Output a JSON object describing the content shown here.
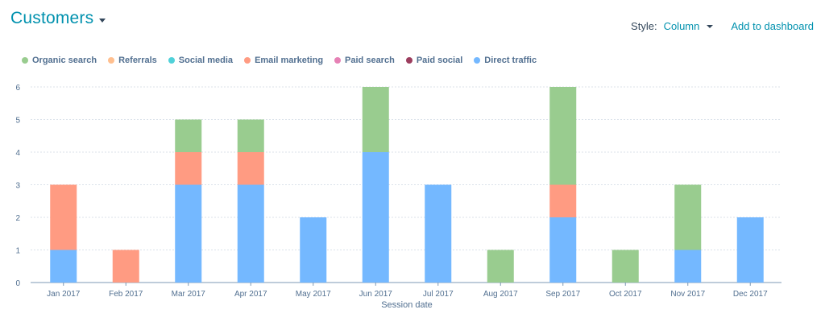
{
  "header": {
    "title": "Customers",
    "style_label": "Style:",
    "style_value": "Column",
    "add_link": "Add to dashboard"
  },
  "legend": [
    {
      "label": "Organic search",
      "color": "#99cc8f"
    },
    {
      "label": "Referrals",
      "color": "#ffbf8f"
    },
    {
      "label": "Social media",
      "color": "#4fd1d9"
    },
    {
      "label": "Email marketing",
      "color": "#ff9b82"
    },
    {
      "label": "Paid search",
      "color": "#e681b5"
    },
    {
      "label": "Paid social",
      "color": "#9c3d5e"
    },
    {
      "label": "Direct traffic",
      "color": "#74b8ff"
    }
  ],
  "chart_data": {
    "type": "bar",
    "stacked": true,
    "xlabel": "Session date",
    "ylabel": "",
    "ylim": [
      0,
      6
    ],
    "yticks": [
      0,
      1,
      2,
      3,
      4,
      5,
      6
    ],
    "grid": true,
    "categories": [
      "Jan 2017",
      "Feb 2017",
      "Mar 2017",
      "Apr 2017",
      "May 2017",
      "Jun 2017",
      "Jul 2017",
      "Aug 2017",
      "Sep 2017",
      "Oct 2017",
      "Nov 2017",
      "Dec 2017"
    ],
    "series": [
      {
        "name": "Direct traffic",
        "color": "#74b8ff",
        "values": [
          1,
          0,
          3,
          3,
          2,
          4,
          3,
          0,
          2,
          0,
          1,
          2
        ]
      },
      {
        "name": "Email marketing",
        "color": "#ff9b82",
        "values": [
          2,
          1,
          1,
          1,
          0,
          0,
          0,
          0,
          1,
          0,
          0,
          0
        ]
      },
      {
        "name": "Organic search",
        "color": "#99cc8f",
        "values": [
          0,
          0,
          1,
          1,
          0,
          2,
          0,
          1,
          3,
          1,
          2,
          0
        ]
      }
    ]
  }
}
